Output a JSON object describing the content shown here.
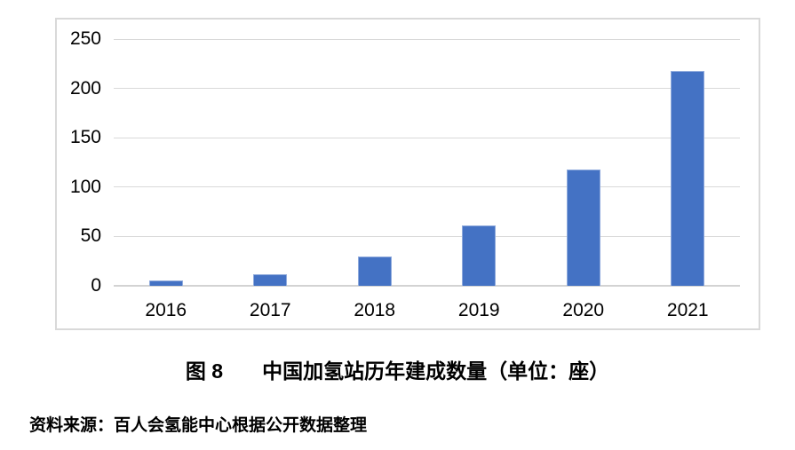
{
  "figure": {
    "label": "图 8",
    "title": "中国加氢站历年建成数量（单位：座）",
    "source": "资料来源：百人会氢能中心根据公开数据整理"
  },
  "colors": {
    "bar_fill": "#4472C4",
    "bar_border": "#8FAADC",
    "gridline": "#D9D9D9",
    "axis_line": "#D3D3D3",
    "frame_border": "#D9D9D9",
    "text": "#000000",
    "background": "#FFFFFF"
  },
  "chart_data": {
    "type": "bar",
    "categories": [
      "2016",
      "2017",
      "2018",
      "2019",
      "2020",
      "2021"
    ],
    "values": [
      5,
      12,
      30,
      61,
      118,
      218
    ],
    "title": "中国加氢站历年建成数量（单位：座）",
    "xlabel": "",
    "ylabel": "",
    "ylim": [
      0,
      250
    ],
    "yticks": [
      0,
      50,
      100,
      150,
      200,
      250
    ],
    "grid": true,
    "legend": false,
    "bar_color": "#4472C4"
  }
}
